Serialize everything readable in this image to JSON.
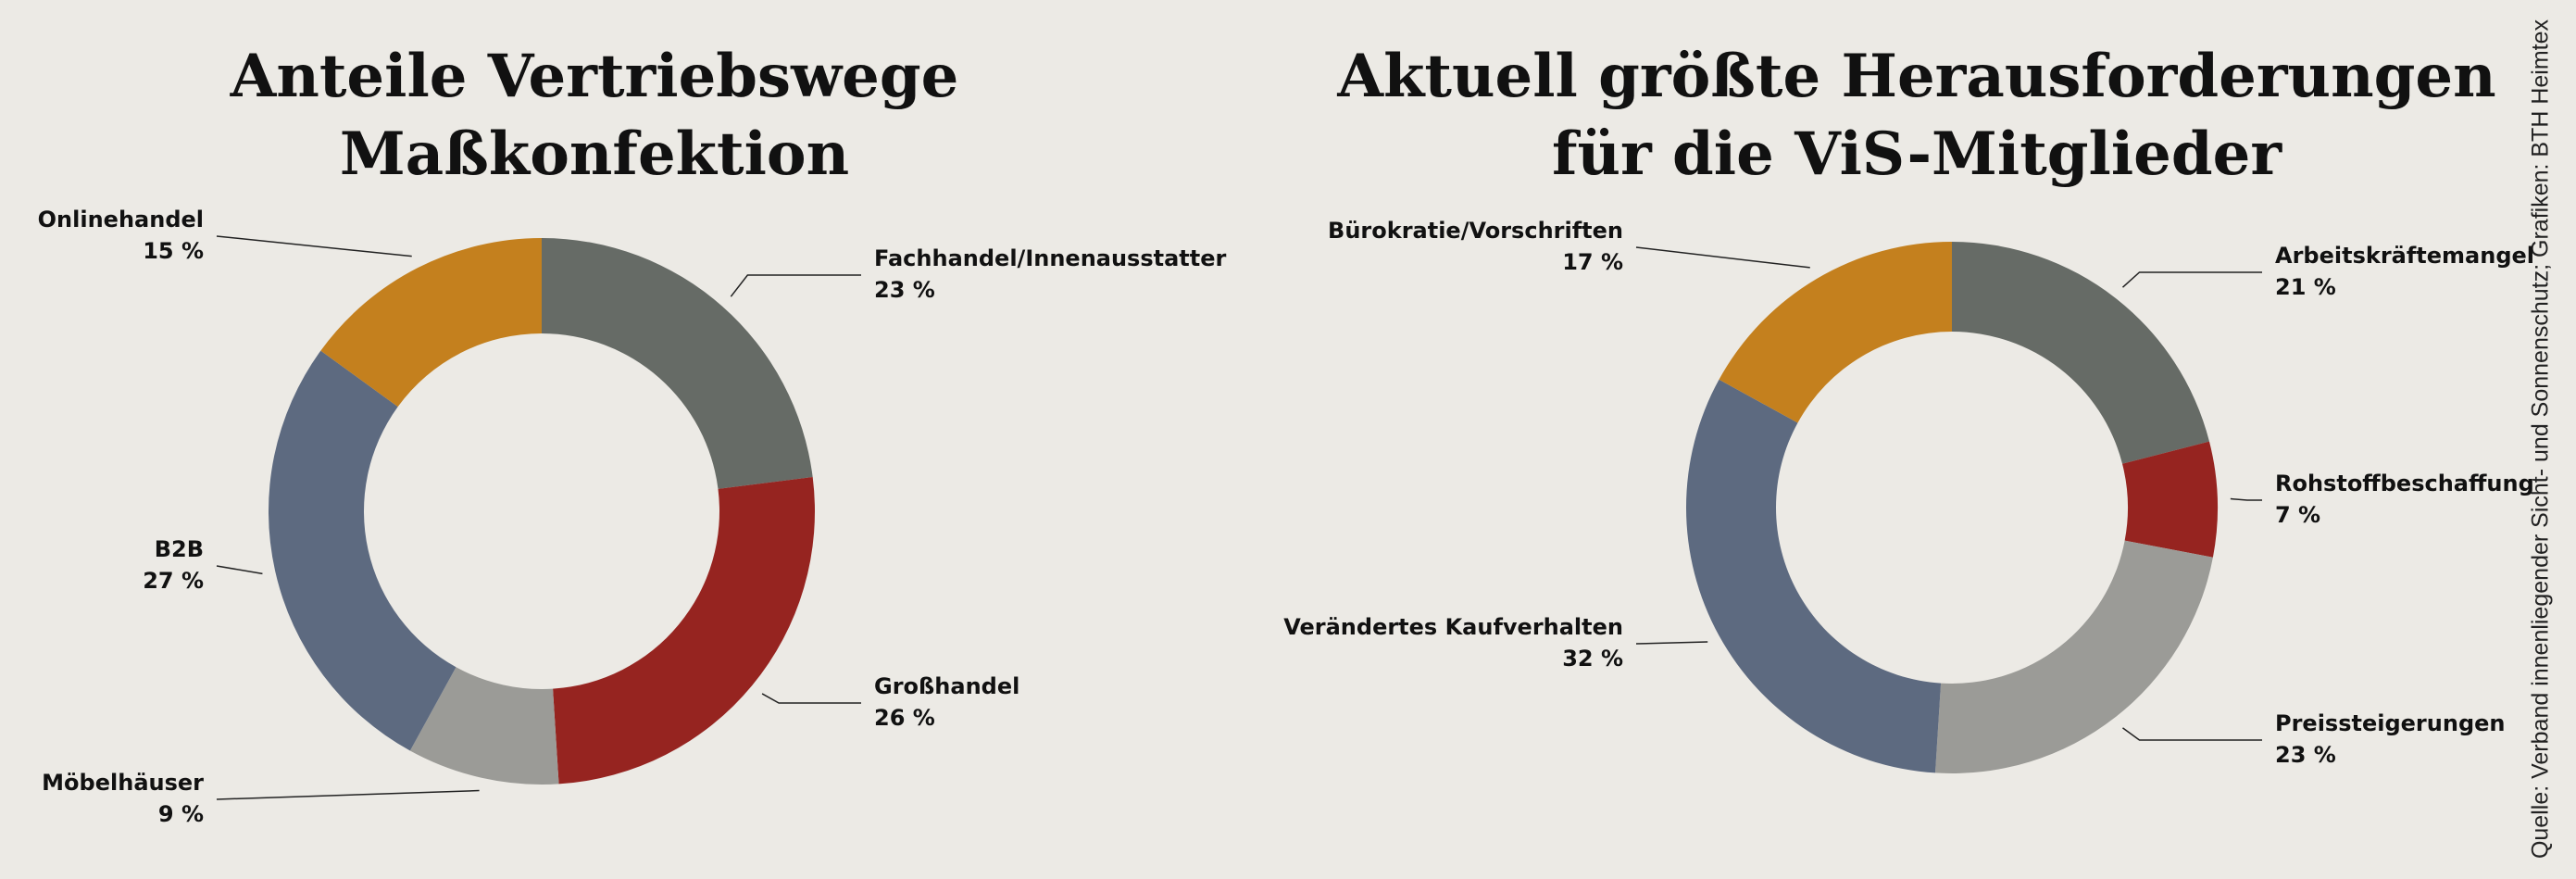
{
  "charts": [
    {
      "chart_data": {
        "type": "donut",
        "title": "Anteile Vertriebswege\nMaßkonfektion",
        "categories": [
          "Fachhandel/Innenausstatter",
          "Großhandel",
          "Möbelhäuser",
          "B2B",
          "Onlinehandel"
        ],
        "values": [
          23,
          26,
          9,
          27,
          15
        ],
        "value_labels": [
          "23 %",
          "26 %",
          "9 %",
          "27 %",
          "15 %"
        ],
        "colors": [
          "#666b66",
          "#962420",
          "#9b9b97",
          "#5d6a80",
          "#c4801e"
        ]
      }
    },
    {
      "chart_data": {
        "type": "donut",
        "title": "Aktuell größte Herausforderungen\nfür die ViS-Mitglieder",
        "categories": [
          "Arbeitskräftemangel",
          "Rohstoffbeschaffung",
          "Preissteigerungen",
          "Verändertes Kaufverhalten",
          "Bürokratie/Vorschriften"
        ],
        "values": [
          21,
          7,
          23,
          32,
          17
        ],
        "value_labels": [
          "21 %",
          "7 %",
          "23 %",
          "32 %",
          "17 %"
        ],
        "colors": [
          "#666b66",
          "#962420",
          "#9b9b97",
          "#5d6a80",
          "#c4801e"
        ]
      }
    }
  ],
  "source": "Quelle: Verband innenliegender Sicht- und Sonnenschutz; Grafiken: BTH Heimtex"
}
